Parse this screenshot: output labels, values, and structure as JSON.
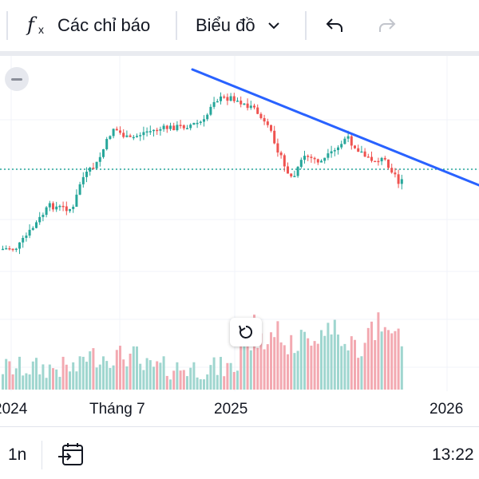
{
  "toolbar": {
    "indicators_label": "Các chỉ báo",
    "chart_type_label": "Biểu đồ"
  },
  "time_axis": [
    "2024",
    "Tháng 7",
    "2025",
    "2026"
  ],
  "bottom_bar": {
    "interval": "1n",
    "time": "13:22"
  },
  "colors": {
    "up": "#26a69a",
    "down": "#ef5350",
    "trendline": "#2962ff",
    "volume_up": "#9fd6cf",
    "volume_down": "#f3a9b1",
    "price_line": "#26a69a"
  },
  "icons": {
    "indicators": "fx-icon",
    "chart_type": "chevron-down-icon",
    "undo": "undo-icon",
    "redo": "redo-icon",
    "goto_date": "calendar-goto-icon",
    "reset": "reset-icon"
  }
}
